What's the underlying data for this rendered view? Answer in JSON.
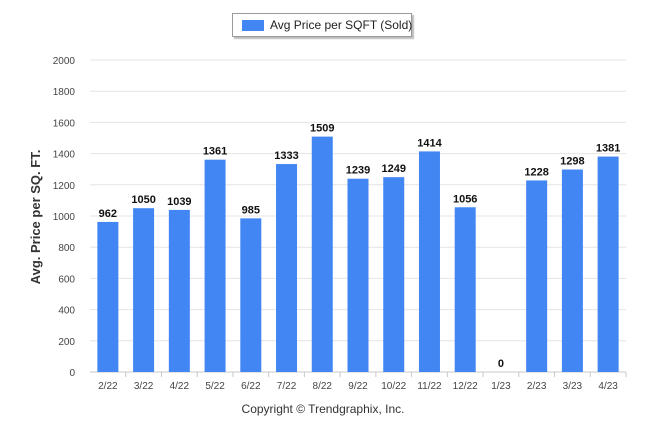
{
  "chart_data": {
    "type": "bar",
    "categories": [
      "2/22",
      "3/22",
      "4/22",
      "5/22",
      "6/22",
      "7/22",
      "8/22",
      "9/22",
      "10/22",
      "11/22",
      "12/22",
      "1/23",
      "2/23",
      "3/23",
      "4/23"
    ],
    "series": [
      {
        "name": "Avg Price per SQFT (Sold)",
        "values": [
          962,
          1050,
          1039,
          1361,
          985,
          1333,
          1509,
          1239,
          1249,
          1414,
          1056,
          0,
          1228,
          1298,
          1381
        ],
        "color": "#4286f4"
      }
    ],
    "title": "",
    "xlabel": "",
    "ylabel": "Avg. Price per SQ. FT.",
    "ylim": [
      0,
      2000
    ],
    "yticks": [
      0,
      200,
      400,
      600,
      800,
      1000,
      1200,
      1400,
      1600,
      1800,
      2000
    ],
    "grid": true,
    "legend_position": "top-center",
    "data_labels": true
  },
  "footer": {
    "copyright": "Copyright © Trendgraphix, Inc."
  }
}
